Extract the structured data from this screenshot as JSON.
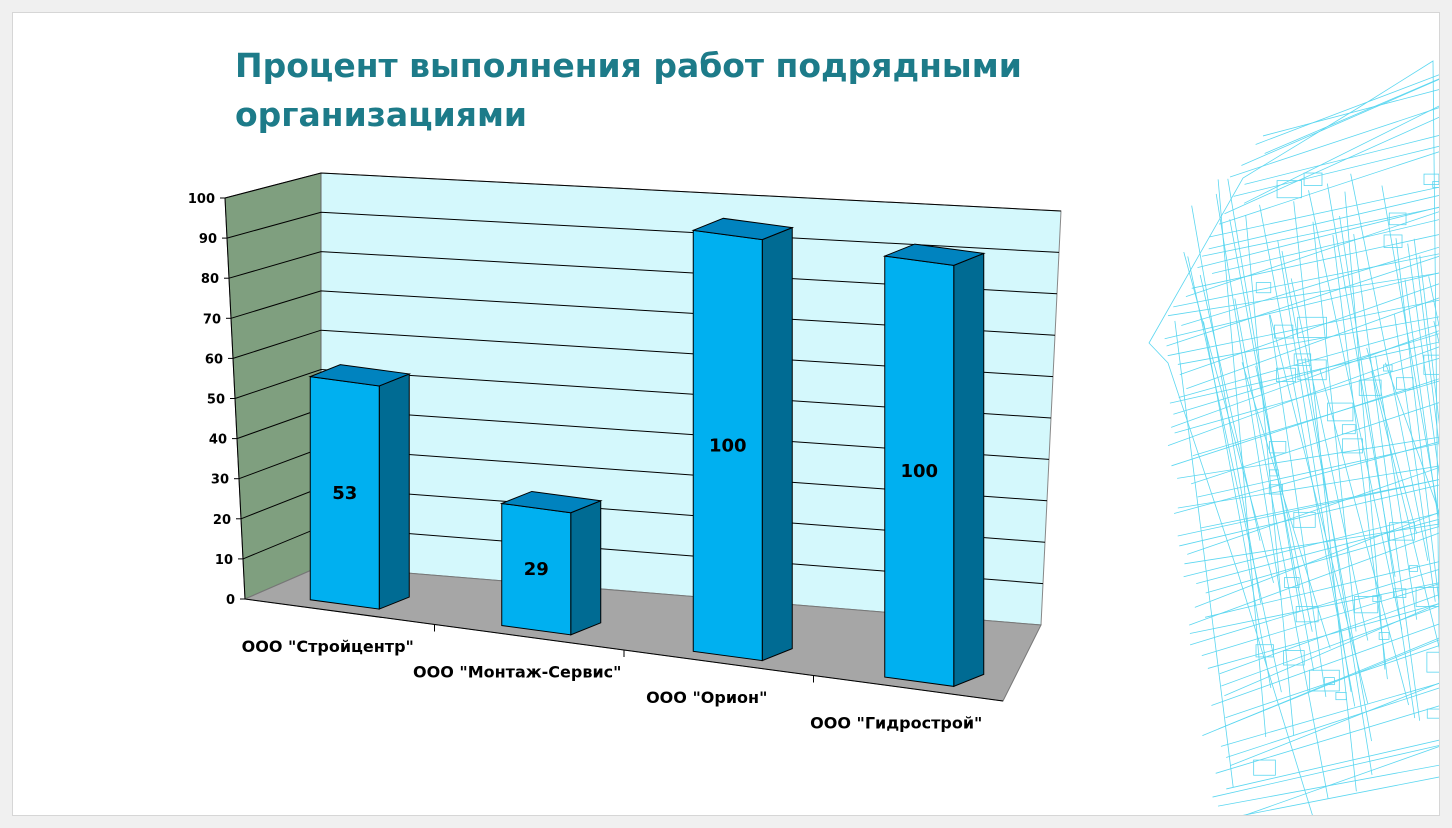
{
  "slide": {
    "title": "Процент выполнения работ подрядными организациями",
    "decoration": "cyan-wireframe-building"
  },
  "chart_data": {
    "type": "bar",
    "subtype": "3d-column",
    "title": "Процент выполнения работ подрядными организациями",
    "xlabel": "",
    "ylabel": "",
    "categories": [
      "ООО \"Стройцентр\"",
      "ООО \"Монтаж-Сервис\"",
      "ООО \"Орион\"",
      "ООО \"Гидрострой\""
    ],
    "values": [
      53,
      29,
      100,
      100
    ],
    "data_labels": [
      "53",
      "29",
      "100",
      "100"
    ],
    "ylim": [
      0,
      100
    ],
    "yticks": [
      "0",
      "10",
      "20",
      "30",
      "40",
      "50",
      "60",
      "70",
      "80",
      "90",
      "100"
    ],
    "grid": true,
    "legend": "none",
    "colors": {
      "bar_front": "#00b0f0",
      "bar_top": "#0083bf",
      "bar_side": "#006b93",
      "back_wall": "#d4f8fc",
      "side_wall": "#7f9f7f",
      "floor": "#a6a6a6",
      "title": "#1d7b89",
      "decoration": "#3fd0ee"
    }
  }
}
